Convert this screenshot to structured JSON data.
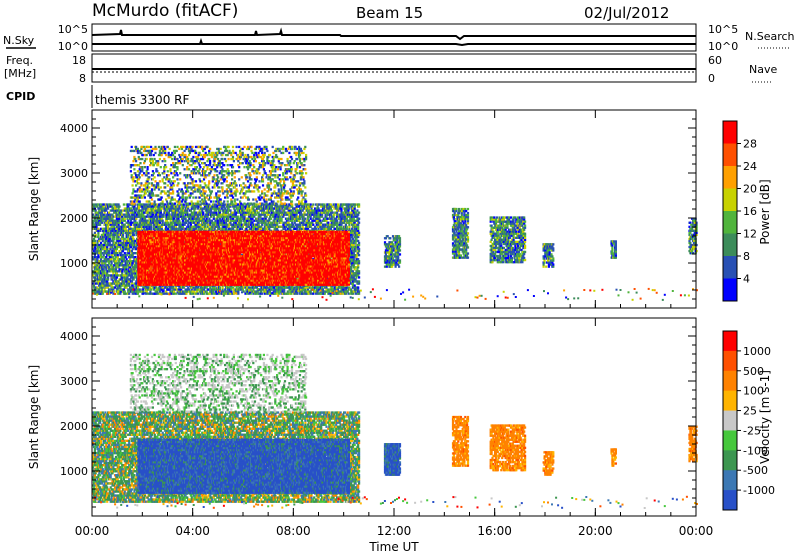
{
  "header": {
    "station": "McMurdo (fitACF)",
    "beam": "Beam 15",
    "date": "02/Jul/2012"
  },
  "nsky_panel": {
    "left_label": "N.Sky",
    "left_ticks": [
      "10^5",
      "10^0"
    ],
    "right_label": "N.Search",
    "right_ticks": [
      "10^5",
      "10^0"
    ]
  },
  "freq_panel": {
    "left_label_line1": "Freq.",
    "left_label_line2": "[MHz]",
    "left_ticks": [
      "18",
      "8"
    ],
    "right_label": "Nave",
    "right_ticks": [
      "60",
      "0"
    ]
  },
  "cpid_panel": {
    "label": "CPID",
    "text": "themis 3300 RF"
  },
  "chart_data": [
    {
      "type": "heatmap",
      "name": "power",
      "ylabel": "Slant Range [km]",
      "ylim": [
        0,
        4400
      ],
      "yticks": [
        1000,
        2000,
        3000,
        4000
      ],
      "xlim": [
        0,
        24
      ],
      "colorbar": {
        "label": "Power [dB]",
        "ticks": [
          "28",
          "24",
          "20",
          "16",
          "12",
          "8",
          "4"
        ],
        "colors": [
          "#0000ff",
          "#2850b4",
          "#3c8c5a",
          "#50b43c",
          "#c8d200",
          "#ffa000",
          "#ff5000",
          "#ff0000"
        ]
      },
      "regions": [
        {
          "t0": 0.0,
          "t1": 10.6,
          "r0": 300,
          "r1": 2300,
          "level": "low"
        },
        {
          "t0": 1.8,
          "t1": 10.2,
          "r0": 500,
          "r1": 1700,
          "level": "high"
        },
        {
          "t0": 1.5,
          "t1": 8.5,
          "r0": 2300,
          "r1": 3600,
          "level": "sparse"
        },
        {
          "t0": 11.6,
          "t1": 12.2,
          "r0": 900,
          "r1": 1600,
          "level": "low"
        },
        {
          "t0": 14.3,
          "t1": 14.9,
          "r0": 1100,
          "r1": 2200,
          "level": "low"
        },
        {
          "t0": 15.8,
          "t1": 17.2,
          "r0": 1000,
          "r1": 2000,
          "level": "low"
        },
        {
          "t0": 17.9,
          "t1": 18.3,
          "r0": 900,
          "r1": 1400,
          "level": "low"
        },
        {
          "t0": 20.6,
          "t1": 20.8,
          "r0": 1100,
          "r1": 1500,
          "level": "low"
        },
        {
          "t0": 23.7,
          "t1": 24.0,
          "r0": 1200,
          "r1": 2000,
          "level": "low"
        }
      ]
    },
    {
      "type": "heatmap",
      "name": "velocity",
      "ylabel": "Slant Range [km]",
      "xlabel": "Time UT",
      "ylim": [
        0,
        4400
      ],
      "yticks": [
        1000,
        2000,
        3000,
        4000
      ],
      "xlim": [
        0,
        24
      ],
      "xticks": [
        "00:00",
        "04:00",
        "08:00",
        "12:00",
        "16:00",
        "20:00",
        "00:00"
      ],
      "colorbar": {
        "label": "Velocity [m s-1]",
        "ticks": [
          "1000",
          "500",
          "100",
          "25",
          "-25",
          "-100",
          "-500",
          "-1000"
        ],
        "colors": [
          "#2850c8",
          "#3c78b4",
          "#3c9650",
          "#46c83c",
          "#c8c8c8",
          "#ffb400",
          "#ff8200",
          "#ff5000",
          "#ff0000"
        ]
      },
      "regions": [
        {
          "t0": 0.0,
          "t1": 10.6,
          "r0": 300,
          "r1": 2300,
          "level": "mixed"
        },
        {
          "t0": 1.8,
          "t1": 10.2,
          "r0": 500,
          "r1": 1700,
          "level": "away"
        },
        {
          "t0": 1.5,
          "t1": 8.5,
          "r0": 2300,
          "r1": 3600,
          "level": "grey"
        },
        {
          "t0": 11.6,
          "t1": 12.2,
          "r0": 900,
          "r1": 1600,
          "level": "away"
        },
        {
          "t0": 14.3,
          "t1": 14.9,
          "r0": 1100,
          "r1": 2200,
          "level": "toward"
        },
        {
          "t0": 15.8,
          "t1": 17.2,
          "r0": 1000,
          "r1": 2000,
          "level": "toward"
        },
        {
          "t0": 17.9,
          "t1": 18.3,
          "r0": 900,
          "r1": 1400,
          "level": "toward"
        },
        {
          "t0": 20.6,
          "t1": 20.8,
          "r0": 1100,
          "r1": 1500,
          "level": "toward"
        },
        {
          "t0": 23.7,
          "t1": 24.0,
          "r0": 1200,
          "r1": 2000,
          "level": "toward"
        }
      ]
    }
  ]
}
